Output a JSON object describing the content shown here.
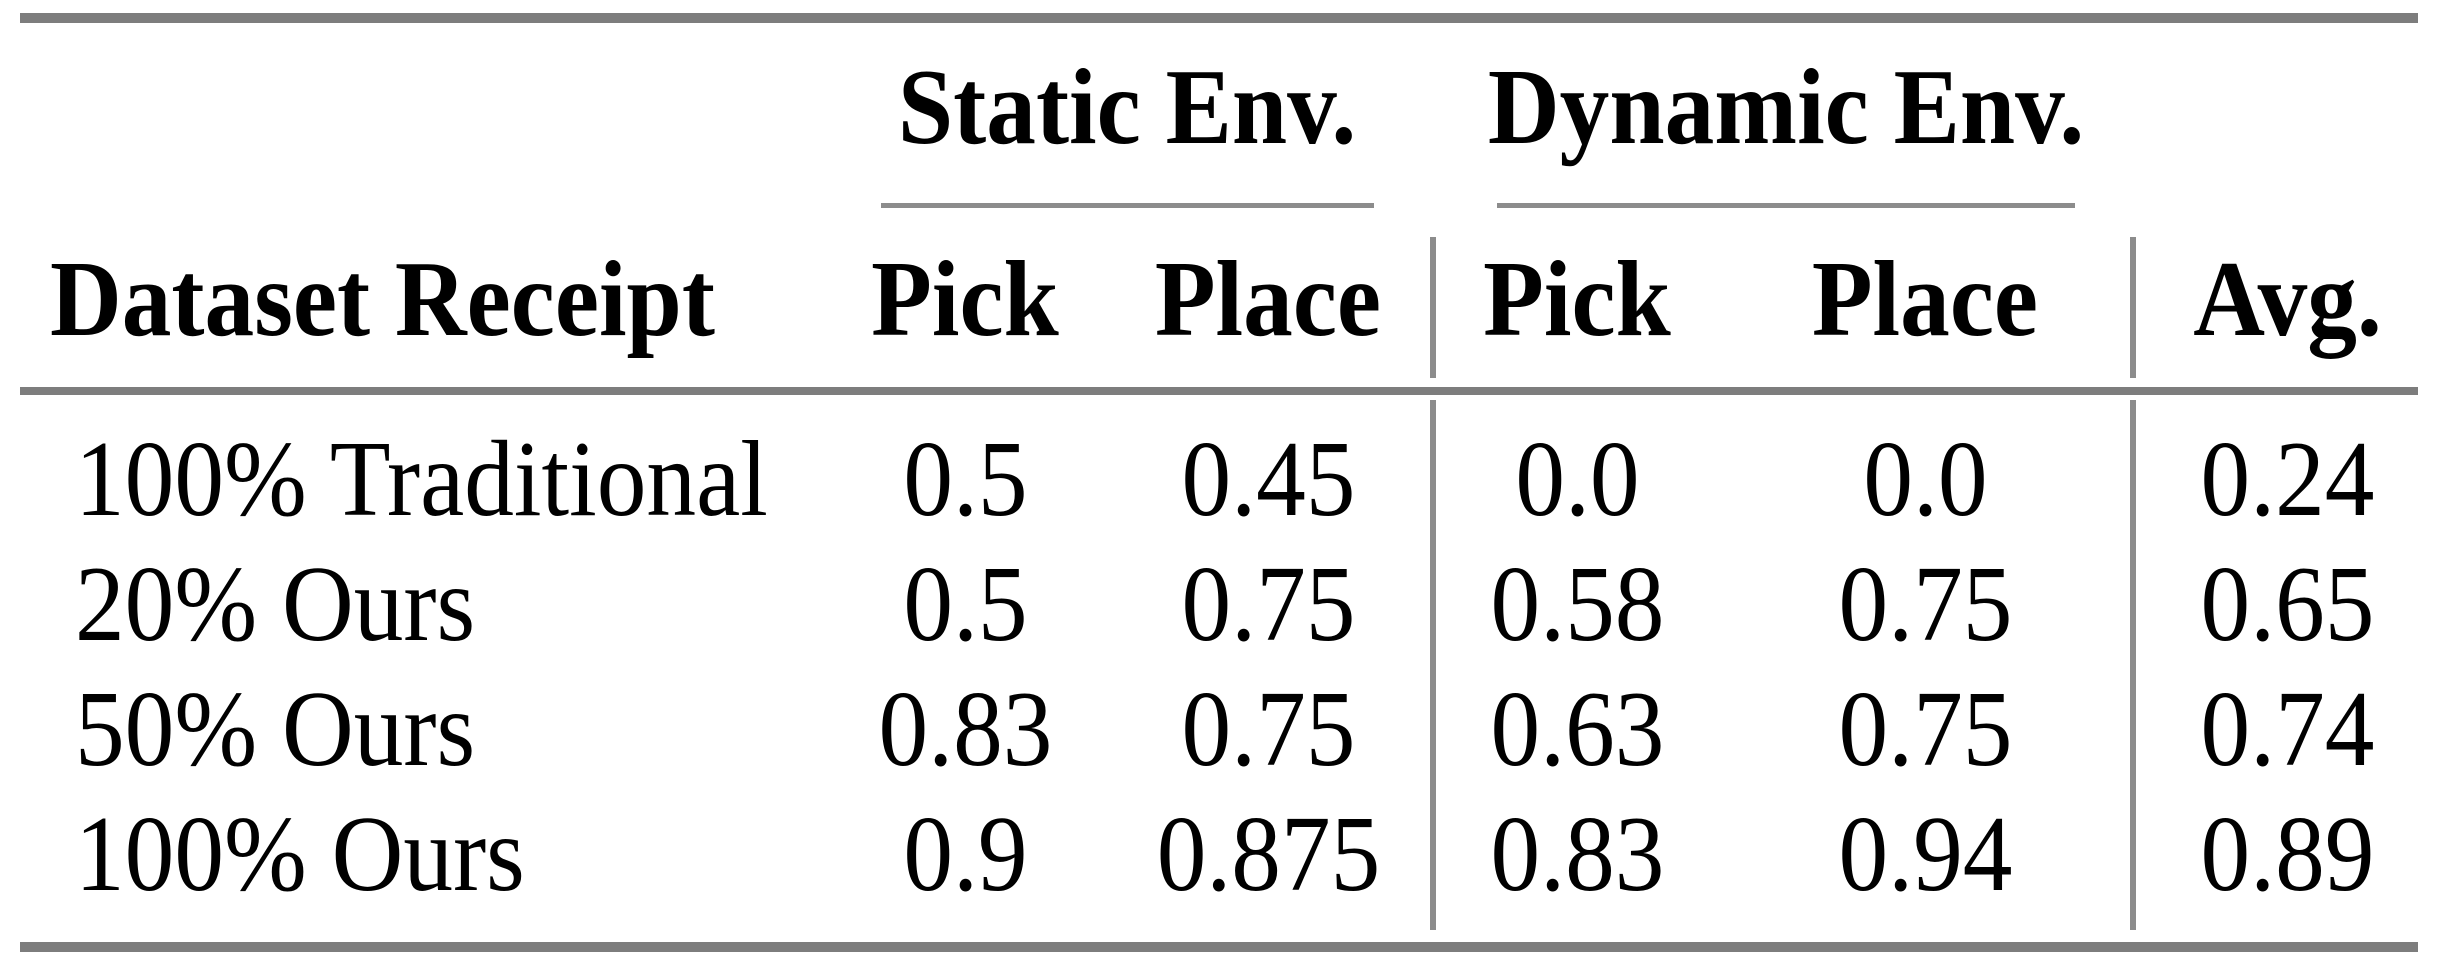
{
  "table": {
    "group_headers": [
      {
        "label": "Static Env."
      },
      {
        "label": "Dynamic Env."
      }
    ],
    "column_headers": {
      "label": "Dataset Receipt",
      "static_pick": "Pick",
      "static_place": "Place",
      "dynamic_pick": "Pick",
      "dynamic_place": "Place",
      "avg": "Avg."
    },
    "rows": [
      {
        "label": "100% Traditional",
        "static_pick": "0.5",
        "static_place": "0.45",
        "dynamic_pick": "0.0",
        "dynamic_place": "0.0",
        "avg": "0.24"
      },
      {
        "label": "20% Ours",
        "static_pick": "0.5",
        "static_place": "0.75",
        "dynamic_pick": "0.58",
        "dynamic_place": "0.75",
        "avg": "0.65"
      },
      {
        "label": "50% Ours",
        "static_pick": "0.83",
        "static_place": "0.75",
        "dynamic_pick": "0.63",
        "dynamic_place": "0.75",
        "avg": "0.74"
      },
      {
        "label": "100% Ours",
        "static_pick": "0.9",
        "static_place": "0.875",
        "dynamic_pick": "0.83",
        "dynamic_place": "0.94",
        "avg": "0.89"
      }
    ],
    "colors": {
      "thick_rule": "#7d7d7d",
      "thin_rule": "#8c8c8c",
      "text": "#000000",
      "background": "#ffffff"
    }
  }
}
